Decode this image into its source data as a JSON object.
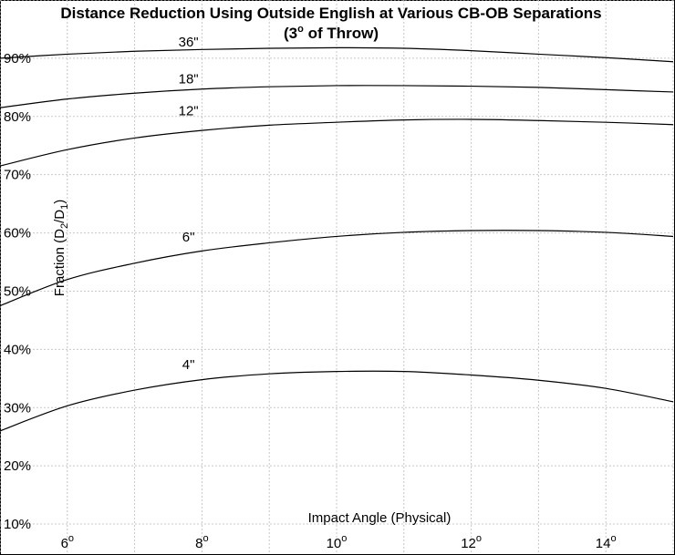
{
  "chart_data": {
    "type": "line",
    "title_line1": "Distance Reduction Using Outside English at Various CB-OB Separations",
    "title_line2_prefix": "(3",
    "title_line2_sup": "o",
    "title_line2_suffix": " of Throw)",
    "xlabel": "Impact Angle (Physical)",
    "ylabel_prefix": "Fraction (D",
    "ylabel_sub1": "2",
    "ylabel_mid": "/D",
    "ylabel_sub2": "1",
    "ylabel_suffix": ")",
    "xlim": [
      5,
      15
    ],
    "ylim": [
      5,
      100
    ],
    "x_ticks": [
      {
        "value": 6,
        "label": "6",
        "sup": "o"
      },
      {
        "value": 8,
        "label": "8",
        "sup": "o"
      },
      {
        "value": 10,
        "label": "10",
        "sup": "o"
      },
      {
        "value": 12,
        "label": "12",
        "sup": "o"
      },
      {
        "value": 14,
        "label": "14",
        "sup": "o"
      }
    ],
    "y_ticks": [
      {
        "value": 10,
        "label": "10%"
      },
      {
        "value": 20,
        "label": "20%"
      },
      {
        "value": 30,
        "label": "30%"
      },
      {
        "value": 40,
        "label": "40%"
      },
      {
        "value": 50,
        "label": "50%"
      },
      {
        "value": 60,
        "label": "60%"
      },
      {
        "value": 70,
        "label": "70%"
      },
      {
        "value": 80,
        "label": "80%"
      },
      {
        "value": 90,
        "label": "90%"
      }
    ],
    "grid": true,
    "x_grid": [
      5,
      6,
      7,
      8,
      9,
      10,
      11,
      12,
      13,
      14,
      15
    ],
    "y_grid": [
      10,
      20,
      30,
      40,
      50,
      60,
      70,
      80,
      90,
      100
    ],
    "series": [
      {
        "name": "36\"",
        "label_x": 7.8,
        "label_y": 92,
        "x": [
          5,
          6,
          7,
          8,
          9,
          10,
          11,
          12,
          13,
          14,
          15
        ],
        "y": [
          90.0,
          90.7,
          91.2,
          91.5,
          91.7,
          91.8,
          91.7,
          91.3,
          90.7,
          90.1,
          89.4
        ]
      },
      {
        "name": "18\"",
        "label_x": 7.8,
        "label_y": 85.7,
        "x": [
          5,
          6,
          7,
          8,
          9,
          10,
          11,
          12,
          13,
          14,
          15
        ],
        "y": [
          81.5,
          83.0,
          84.0,
          84.7,
          85.1,
          85.3,
          85.3,
          85.2,
          85.0,
          84.6,
          84.2
        ]
      },
      {
        "name": "12\"",
        "label_x": 7.8,
        "label_y": 80.2,
        "x": [
          5,
          6,
          7,
          8,
          9,
          10,
          11,
          12,
          13,
          14,
          15
        ],
        "y": [
          71.5,
          74.3,
          76.3,
          77.6,
          78.5,
          79.0,
          79.4,
          79.5,
          79.3,
          79.0,
          78.6
        ]
      },
      {
        "name": "6\"",
        "label_x": 7.8,
        "label_y": 58.5,
        "x": [
          5,
          6,
          7,
          8,
          9,
          10,
          11,
          12,
          13,
          14,
          15
        ],
        "y": [
          47.5,
          52.0,
          54.8,
          56.9,
          58.3,
          59.4,
          60.1,
          60.4,
          60.4,
          60.1,
          59.4
        ]
      },
      {
        "name": "4\"",
        "label_x": 7.8,
        "label_y": 36.6,
        "x": [
          5,
          6,
          7,
          8,
          9,
          10,
          11,
          12,
          13,
          14,
          15
        ],
        "y": [
          26.0,
          30.3,
          33.0,
          34.8,
          35.8,
          36.2,
          36.2,
          35.6,
          34.7,
          33.3,
          31.0
        ]
      }
    ]
  }
}
